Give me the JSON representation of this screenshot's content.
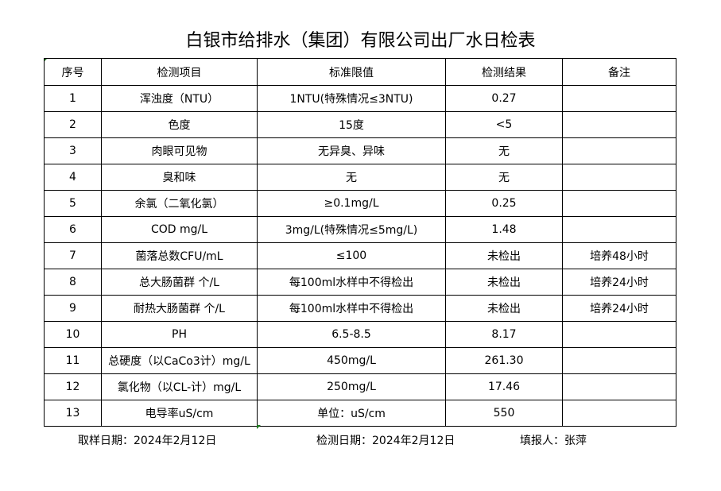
{
  "title": "白银市给排水（集团）有限公司出厂水日检表",
  "headers": [
    "序号",
    "检测项目",
    "标准限值",
    "检测结果",
    "备注"
  ],
  "rows": [
    [
      "1",
      "浑浊度（NTU）",
      "1NTU(特殊情况≤3NTU)",
      "0.27",
      ""
    ],
    [
      "2",
      "色度",
      "15度",
      "<5",
      ""
    ],
    [
      "3",
      "肉眼可见物",
      "无异臭、异味",
      "无",
      ""
    ],
    [
      "4",
      "臭和味",
      "无",
      "无",
      ""
    ],
    [
      "5",
      "余氯（二氧化氯）",
      "≥0.1mg/L",
      "0.25",
      ""
    ],
    [
      "6",
      "COD         mg/L",
      "3mg/L(特殊情况≤5mg/L)",
      "1.48",
      ""
    ],
    [
      "7",
      "菌落总数CFU/mL",
      "≤100",
      "未检出",
      "培养48小时"
    ],
    [
      "8",
      "总大肠菌群 个/L",
      "每100ml水样中不得检出",
      "未检出",
      "培养24小时"
    ],
    [
      "9",
      "耐热大肠菌群 个/L",
      "每100ml水样中不得检出",
      "未检出",
      "培养24小时"
    ],
    [
      "10",
      "PH",
      "6.5-8.5",
      "8.17",
      ""
    ],
    [
      "11",
      "总硬度（以CaCo3计）mg/L",
      "450mg/L",
      "261.30",
      ""
    ],
    [
      "12",
      "氯化物（以CL-计）mg/L",
      "250mg/L",
      "17.46",
      ""
    ],
    [
      "13",
      "电导率uS/cm",
      "单位：uS/cm",
      "550",
      ""
    ]
  ],
  "footer": {
    "sample_date": "取样日期：2024年2月12日",
    "test_date": "检测日期：2024年2月12日",
    "reporter": "填报人：张萍"
  }
}
